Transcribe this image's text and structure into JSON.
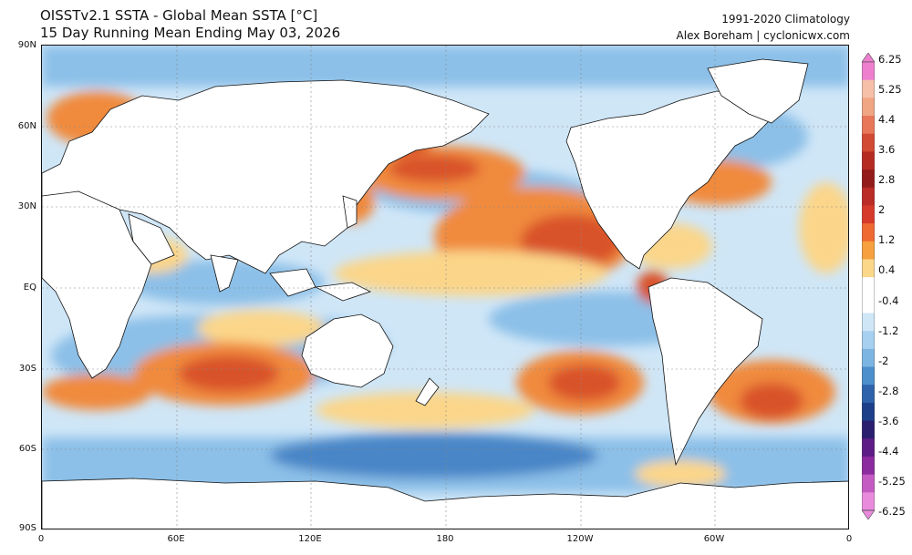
{
  "header": {
    "title_line1": "OISSTv2.1 SSTA - Global Mean SSTA [°C]",
    "title_line2": "15 Day Running Mean Ending May 03, 2026",
    "climatology": "1991-2020 Climatology",
    "credit": "Alex Boreham | cyclonicwx.com"
  },
  "axes": {
    "lat_labels": [
      "90N",
      "60N",
      "30N",
      "EQ",
      "30S",
      "60S",
      "90S"
    ],
    "lon_labels": [
      "0",
      "60E",
      "120E",
      "180",
      "120W",
      "60W",
      "0"
    ]
  },
  "colorbar": {
    "labels": [
      "6.25",
      "5.25",
      "4.4",
      "3.6",
      "2.8",
      "2",
      "1.2",
      "0.4",
      "-0.4",
      "-1.2",
      "-2",
      "-2.8",
      "-3.6",
      "-4.4",
      "-5.25",
      "-6.25"
    ],
    "colors": [
      "#ee7fcf",
      "#f6bfa8",
      "#f0a583",
      "#e8775a",
      "#d24a34",
      "#b52b22",
      "#931c1a",
      "#bb2c27",
      "#d63a2b",
      "#ef6a33",
      "#f6a03f",
      "#fbd78a",
      "#ffffff",
      "#ffffff",
      "#cfe6f7",
      "#a7d0f0",
      "#7db5e2",
      "#4c8fcc",
      "#2e62ab",
      "#1d3f8a",
      "#2a1f6f",
      "#5e1d86",
      "#8c2aa0",
      "#c45bc2",
      "#e98bdc"
    ]
  },
  "map": {
    "ocean_colors": {
      "warm_strong": "#d9532b",
      "warm": "#f08a3c",
      "warm_light": "#fbd68a",
      "neutral": "#ffffff",
      "cool_light": "#cfe6f7",
      "cool": "#8cc0e8",
      "cool_strong": "#4a86c7"
    },
    "land_color": "#ffffff"
  }
}
